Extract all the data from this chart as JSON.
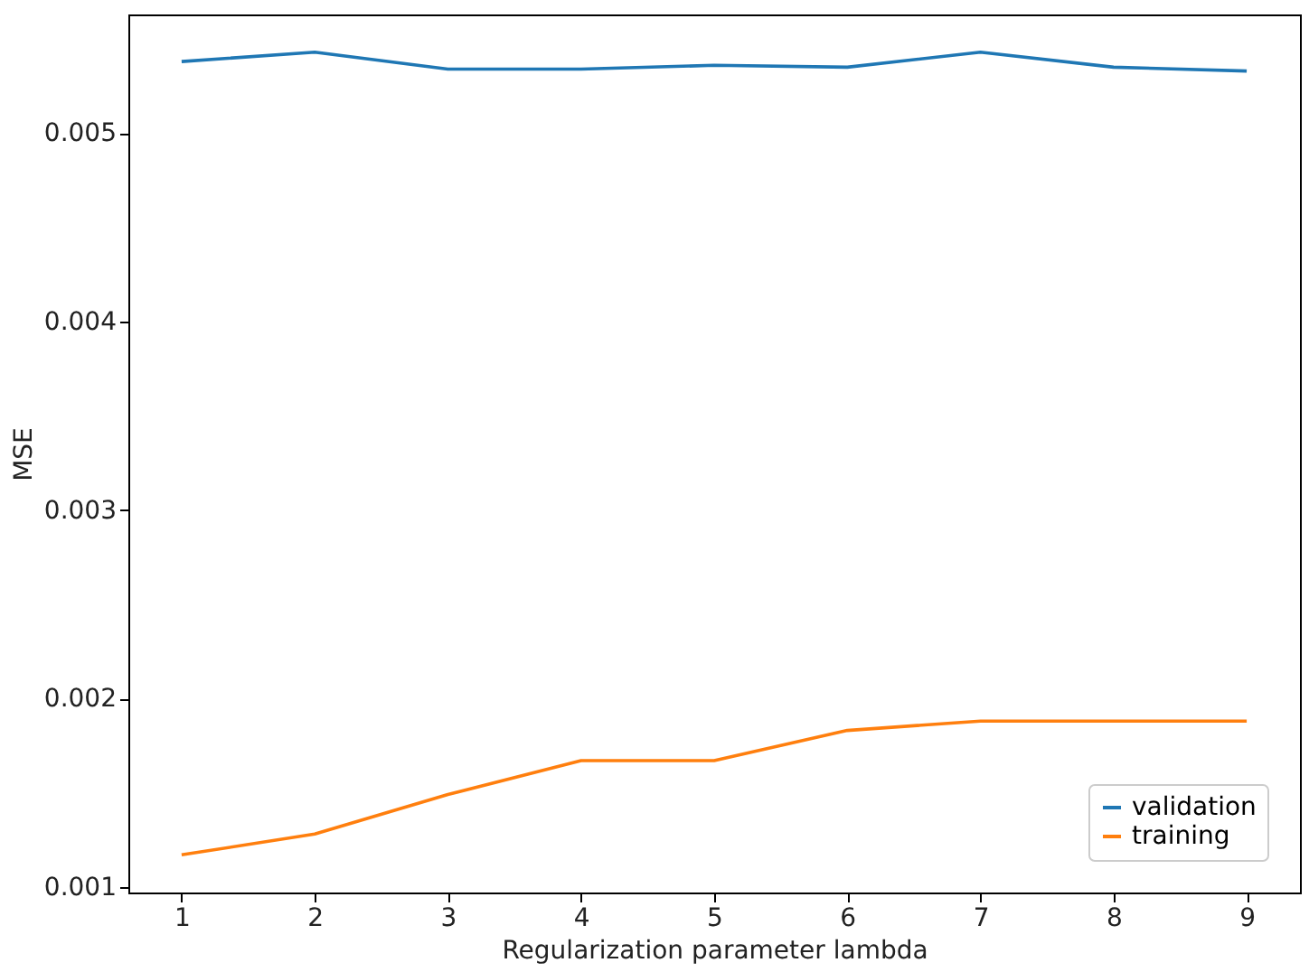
{
  "chart_data": {
    "type": "line",
    "xlabel": "Regularization parameter lambda",
    "ylabel": "MSE",
    "x": [
      1,
      2,
      3,
      4,
      5,
      6,
      7,
      8,
      9
    ],
    "series": [
      {
        "name": "validation",
        "color": "#1f77b4",
        "values": [
          0.00538,
          0.00543,
          0.00534,
          0.00534,
          0.00536,
          0.00535,
          0.00543,
          0.00535,
          0.00533
        ]
      },
      {
        "name": "training",
        "color": "#ff7f0e",
        "values": [
          0.00117,
          0.00128,
          0.00149,
          0.00167,
          0.00167,
          0.00183,
          0.00188,
          0.00188,
          0.00188
        ]
      }
    ],
    "xlim": [
      0.6,
      9.4
    ],
    "xticks": [
      1,
      2,
      3,
      4,
      5,
      6,
      7,
      8,
      9
    ],
    "ylim": [
      0.00097,
      0.00563
    ],
    "yticks": [
      0.001,
      0.002,
      0.003,
      0.004,
      0.005
    ],
    "grid": false,
    "legend": "bottom right",
    "marker": "none",
    "line_style": "solid"
  }
}
